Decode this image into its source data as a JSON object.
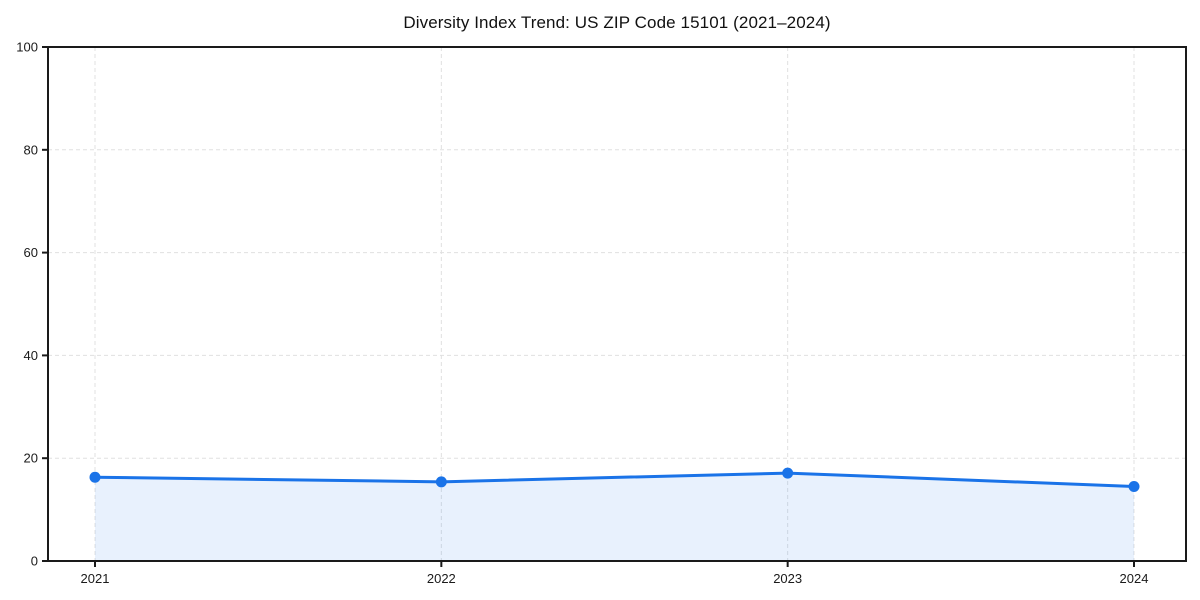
{
  "chart_data": {
    "type": "area",
    "title": "Diversity Index Trend: US ZIP Code 15101 (2021–2024)",
    "categories": [
      "2021",
      "2022",
      "2023",
      "2024"
    ],
    "series": [
      {
        "name": "Diversity Index",
        "values": [
          16.3,
          15.4,
          17.1,
          14.5
        ]
      }
    ],
    "xlabel": "",
    "ylabel": "",
    "ylim": [
      0,
      100
    ],
    "yticks": [
      0,
      20,
      40,
      60,
      80,
      100
    ],
    "grid": true,
    "grid_style": "dashed",
    "legend": "none",
    "colors": {
      "line": "#1a73e8",
      "fill": "rgba(26, 115, 232, 0.10)",
      "grid": "#e0e0e0",
      "axis": "#1a1a1a",
      "text": "#1a1a1a",
      "background": "#ffffff"
    }
  }
}
